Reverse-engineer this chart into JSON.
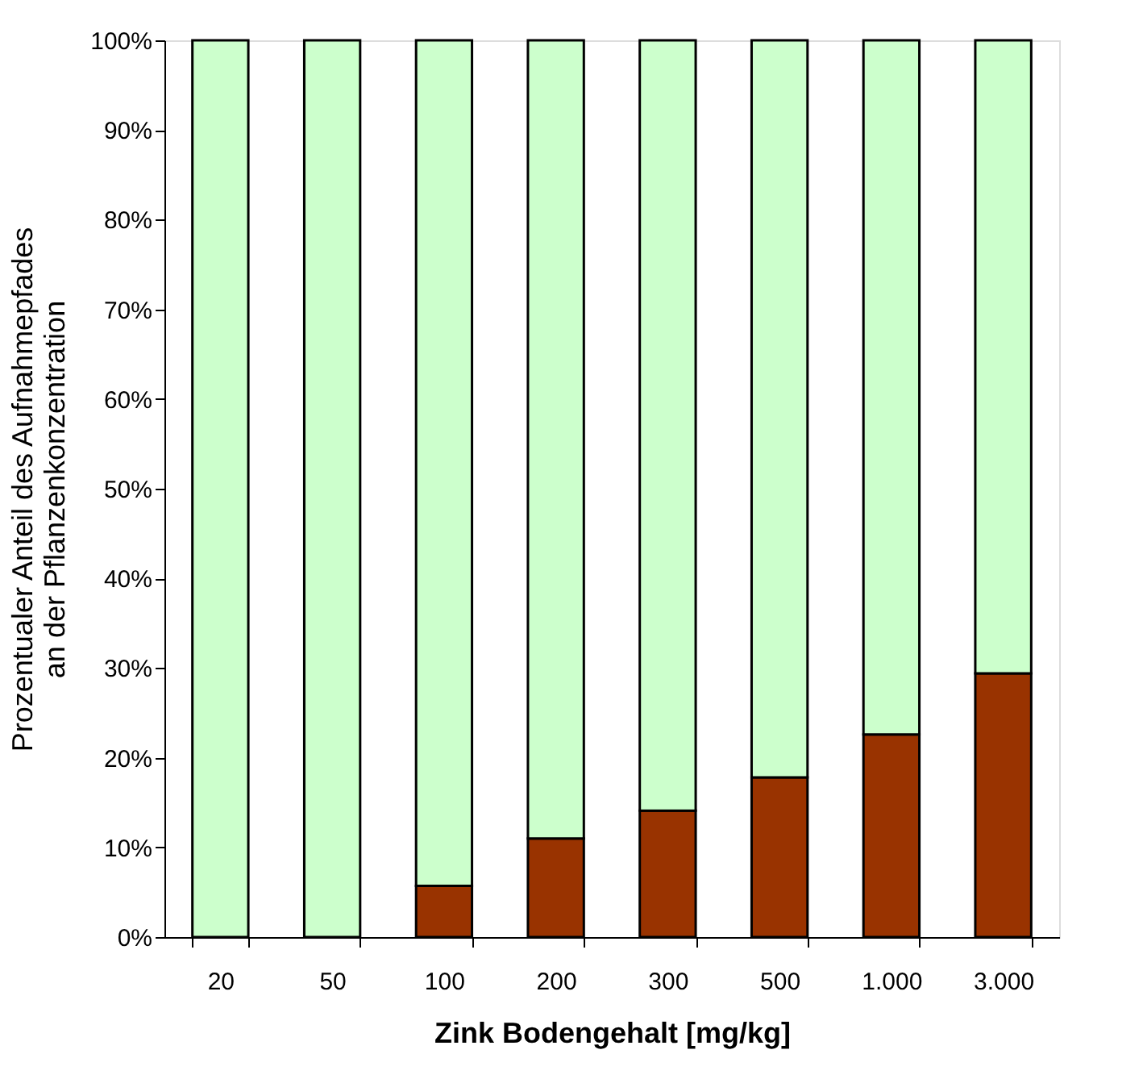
{
  "chart_data": {
    "type": "bar",
    "stacked": true,
    "categories": [
      "20",
      "50",
      "100",
      "200",
      "300",
      "500",
      "1.000",
      "3.000"
    ],
    "series": [
      {
        "color": "#993300",
        "values": [
          0,
          0,
          5.7,
          11.0,
          14.1,
          17.8,
          22.6,
          29.4
        ]
      },
      {
        "color": "#ccffcc",
        "values": [
          100,
          100,
          94.3,
          89.0,
          85.9,
          82.2,
          77.4,
          70.6
        ]
      }
    ],
    "xlabel": "Zink Bodengehalt [mg/kg]",
    "ylabel": "Prozentualer Anteil des Aufnahmepfades\nan der Pflanzenkonzentration",
    "ylim": [
      0,
      100
    ],
    "yticks": [
      {
        "value": 0,
        "label": "0%"
      },
      {
        "value": 10,
        "label": "10%"
      },
      {
        "value": 20,
        "label": "20%"
      },
      {
        "value": 30,
        "label": "30%"
      },
      {
        "value": 40,
        "label": "40%"
      },
      {
        "value": 50,
        "label": "50%"
      },
      {
        "value": 60,
        "label": "60%"
      },
      {
        "value": 70,
        "label": "70%"
      },
      {
        "value": 80,
        "label": "80%"
      },
      {
        "value": 90,
        "label": "90%"
      },
      {
        "value": 100,
        "label": "100%"
      }
    ],
    "grid": false,
    "legend": false
  }
}
